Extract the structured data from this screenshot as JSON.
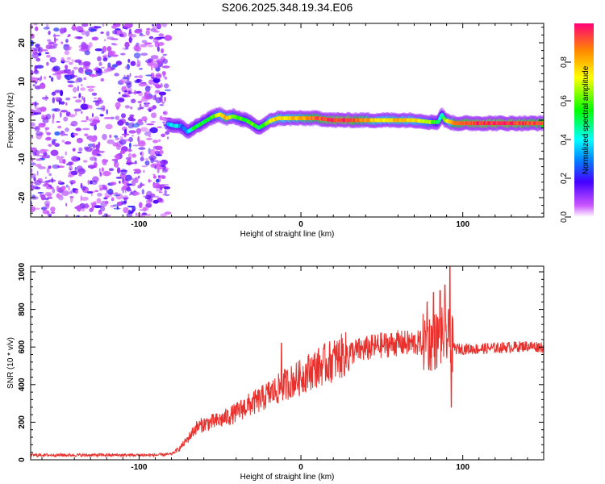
{
  "chart_data": [
    {
      "type": "heatmap",
      "title": "S206.2025.348.19.34.E06",
      "xlabel": "Height of straight line (km)",
      "ylabel": "Frequency (Hz)",
      "xlim": [
        -167,
        150
      ],
      "ylim": [
        -25,
        25
      ],
      "x_ticks": [
        -100,
        0,
        100
      ],
      "x_tick_labels": [
        "-100",
        "0",
        "100"
      ],
      "y_ticks": [
        -20,
        -10,
        0,
        10,
        20
      ],
      "y_tick_labels": [
        "-20",
        "-10",
        "0",
        "10",
        "20"
      ],
      "noise_region": {
        "x_start": -167,
        "x_end": -82
      },
      "ridge": {
        "x": [
          -82,
          -78,
          -74,
          -70,
          -66,
          -62,
          -58,
          -54,
          -50,
          -46,
          -42,
          -38,
          -34,
          -30,
          -26,
          -22,
          -18,
          -14,
          -10,
          -6,
          -2,
          2,
          10,
          20,
          30,
          40,
          50,
          60,
          70,
          80,
          85,
          87,
          89,
          95,
          110,
          130,
          150
        ],
        "freq": [
          -1,
          -1.5,
          -1.5,
          -3,
          -2,
          -1,
          0,
          1,
          1.5,
          0.5,
          1,
          0.5,
          0,
          -1,
          -2,
          -1,
          0,
          0.5,
          0.5,
          0.5,
          0.5,
          0.5,
          0.5,
          0,
          0,
          0,
          0,
          0,
          0,
          -0.5,
          -0.5,
          1.5,
          0,
          -0.8,
          -0.8,
          -0.8,
          -0.8
        ],
        "amplitude": [
          0.35,
          0.4,
          0.3,
          0.3,
          0.5,
          0.55,
          0.5,
          0.6,
          0.7,
          0.85,
          0.65,
          0.6,
          0.55,
          0.6,
          0.5,
          0.6,
          0.75,
          0.8,
          0.75,
          0.8,
          0.8,
          0.85,
          0.9,
          0.95,
          0.95,
          0.85,
          0.75,
          0.8,
          0.75,
          0.65,
          0.5,
          0.4,
          0.6,
          0.9,
          0.95,
          0.95,
          0.9
        ]
      },
      "colorbar": {
        "label": "Normalized spectral amplitude",
        "range": [
          0,
          1
        ],
        "ticks": [
          0.0,
          0.2,
          0.4,
          0.6,
          0.8
        ],
        "tick_labels": [
          "0.0",
          "0.2",
          "0.4",
          "0.6",
          "0.8"
        ]
      }
    },
    {
      "type": "line",
      "xlabel": "Height of straight line (km)",
      "ylabel": "SNR (10 * v/v)",
      "xlim": [
        -167,
        150
      ],
      "ylim": [
        0,
        1030
      ],
      "x_ticks": [
        -100,
        0,
        100
      ],
      "x_tick_labels": [
        "-100",
        "0",
        "100"
      ],
      "y_ticks": [
        0,
        200,
        400,
        600,
        800,
        1000
      ],
      "y_tick_labels": [
        "0",
        "200",
        "400",
        "600",
        "800",
        "1000"
      ],
      "color": "#e8302c",
      "series": [
        {
          "name": "SNR",
          "x": [
            -167,
            -150,
            -130,
            -110,
            -90,
            -80,
            -75,
            -70,
            -65,
            -60,
            -55,
            -50,
            -45,
            -40,
            -35,
            -30,
            -25,
            -20,
            -15,
            -10,
            -5,
            0,
            5,
            10,
            15,
            20,
            25,
            30,
            35,
            40,
            45,
            50,
            55,
            60,
            65,
            70,
            75,
            80,
            85,
            88,
            90,
            92,
            94,
            96,
            100,
            110,
            120,
            130,
            140,
            150
          ],
          "y": [
            25,
            25,
            25,
            25,
            25,
            30,
            60,
            110,
            170,
            190,
            200,
            210,
            230,
            250,
            280,
            300,
            320,
            350,
            370,
            400,
            420,
            440,
            470,
            490,
            510,
            530,
            550,
            570,
            580,
            590,
            600,
            610,
            615,
            620,
            620,
            620,
            620,
            625,
            640,
            660,
            650,
            640,
            600,
            590,
            590,
            590,
            595,
            600,
            605,
            600
          ]
        }
      ],
      "spikes": [
        {
          "x": -12,
          "y": 620
        },
        {
          "x": 78,
          "y": 840
        },
        {
          "x": 82,
          "y": 890
        },
        {
          "x": 86,
          "y": 900
        },
        {
          "x": 89,
          "y": 930
        },
        {
          "x": 92,
          "y": 1030
        },
        {
          "x": 93,
          "y": 280
        }
      ]
    }
  ]
}
